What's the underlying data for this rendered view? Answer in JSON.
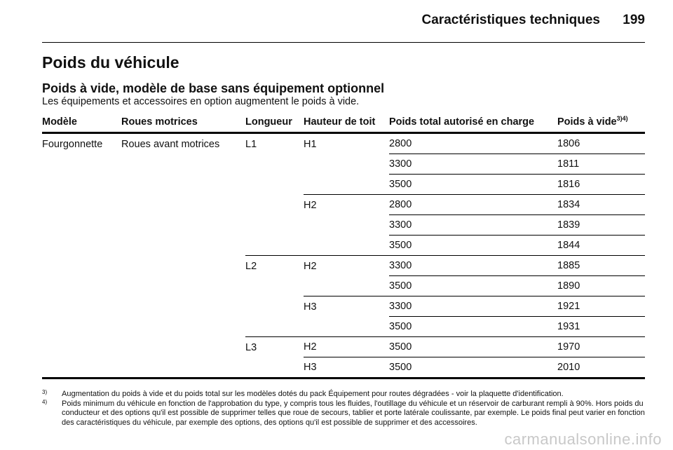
{
  "header": {
    "title": "Caractéristiques techniques",
    "page_number": "199"
  },
  "section_title": "Poids du véhicule",
  "subsection_title": "Poids à vide, modèle de base sans équipement optionnel",
  "intro": "Les équipements et accessoires en option augmentent le poids à vide.",
  "table": {
    "headers": [
      "Modèle",
      "Roues motrices",
      "Longueur",
      "Hauteur de toit",
      "Poids total autorisé en charge",
      "Poids à vide"
    ],
    "last_header_sup": "3)4)",
    "model": "Fourgonnette",
    "drive": "Roues avant motrices",
    "lengths": [
      "L1",
      "L2",
      "L3"
    ],
    "rows": [
      {
        "length": "L1",
        "roof": "H1",
        "gvw": "2800",
        "kerb": "1806"
      },
      {
        "length": "",
        "roof": "",
        "gvw": "3300",
        "kerb": "1811"
      },
      {
        "length": "",
        "roof": "",
        "gvw": "3500",
        "kerb": "1816"
      },
      {
        "length": "",
        "roof": "H2",
        "gvw": "2800",
        "kerb": "1834"
      },
      {
        "length": "",
        "roof": "",
        "gvw": "3300",
        "kerb": "1839"
      },
      {
        "length": "",
        "roof": "",
        "gvw": "3500",
        "kerb": "1844"
      },
      {
        "length": "L2",
        "roof": "H2",
        "gvw": "3300",
        "kerb": "1885"
      },
      {
        "length": "",
        "roof": "",
        "gvw": "3500",
        "kerb": "1890"
      },
      {
        "length": "",
        "roof": "H3",
        "gvw": "3300",
        "kerb": "1921"
      },
      {
        "length": "",
        "roof": "",
        "gvw": "3500",
        "kerb": "1931"
      },
      {
        "length": "L3",
        "roof": "H2",
        "gvw": "3500",
        "kerb": "1970"
      },
      {
        "length": "",
        "roof": "H3",
        "gvw": "3500",
        "kerb": "2010"
      }
    ]
  },
  "footnotes": [
    {
      "mark": "3)",
      "text": "Augmentation du poids à vide et du poids total sur les modèles dotés du pack Équipement pour routes dégradées - voir la plaquette d'identification."
    },
    {
      "mark": "4)",
      "text": "Poids minimum du véhicule en fonction de l'approbation du type, y compris tous les fluides, l'outillage du véhicule et un réservoir de carburant rempli à 90%. Hors poids du conducteur et des options qu'il est possible de supprimer telles que roue de secours, tablier et porte latérale coulissante, par exemple. Le poids final peut varier en fonction des caractéristiques du véhicule, par exemple des options, des options qu'il est possible de supprimer et des accessoires."
    }
  ],
  "watermark": "carmanualsonline.info"
}
